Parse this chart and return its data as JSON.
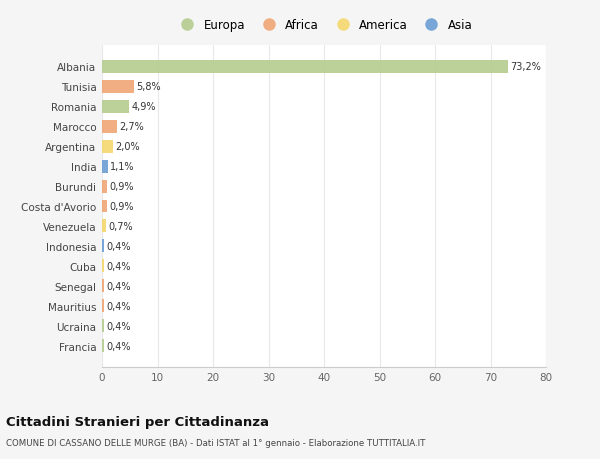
{
  "countries": [
    "Albania",
    "Tunisia",
    "Romania",
    "Marocco",
    "Argentina",
    "India",
    "Burundi",
    "Costa d'Avorio",
    "Venezuela",
    "Indonesia",
    "Cuba",
    "Senegal",
    "Mauritius",
    "Ucraina",
    "Francia"
  ],
  "values": [
    73.2,
    5.8,
    4.9,
    2.7,
    2.0,
    1.1,
    0.9,
    0.9,
    0.7,
    0.4,
    0.4,
    0.4,
    0.4,
    0.4,
    0.4
  ],
  "labels": [
    "73,2%",
    "5,8%",
    "4,9%",
    "2,7%",
    "2,0%",
    "1,1%",
    "0,9%",
    "0,9%",
    "0,7%",
    "0,4%",
    "0,4%",
    "0,4%",
    "0,4%",
    "0,4%",
    "0,4%"
  ],
  "colors": [
    "#b5cc8e",
    "#f0a575",
    "#b5cc8e",
    "#f0a575",
    "#f5d76e",
    "#6b9fd4",
    "#f0a575",
    "#f0a575",
    "#f5d76e",
    "#6b9fd4",
    "#f5d76e",
    "#f0a575",
    "#f0a575",
    "#b5cc8e",
    "#b5cc8e"
  ],
  "legend_labels": [
    "Europa",
    "Africa",
    "America",
    "Asia"
  ],
  "legend_colors": [
    "#b5cc8e",
    "#f0a575",
    "#f5d76e",
    "#6b9fd4"
  ],
  "title": "Cittadini Stranieri per Cittadinanza",
  "subtitle": "COMUNE DI CASSANO DELLE MURGE (BA) - Dati ISTAT al 1° gennaio - Elaborazione TUTTITALIA.IT",
  "xlim": [
    0,
    80
  ],
  "xticks": [
    0,
    10,
    20,
    30,
    40,
    50,
    60,
    70,
    80
  ],
  "bg_color": "#f5f5f5",
  "plot_bg_color": "#ffffff",
  "grid_color": "#e8e8e8"
}
